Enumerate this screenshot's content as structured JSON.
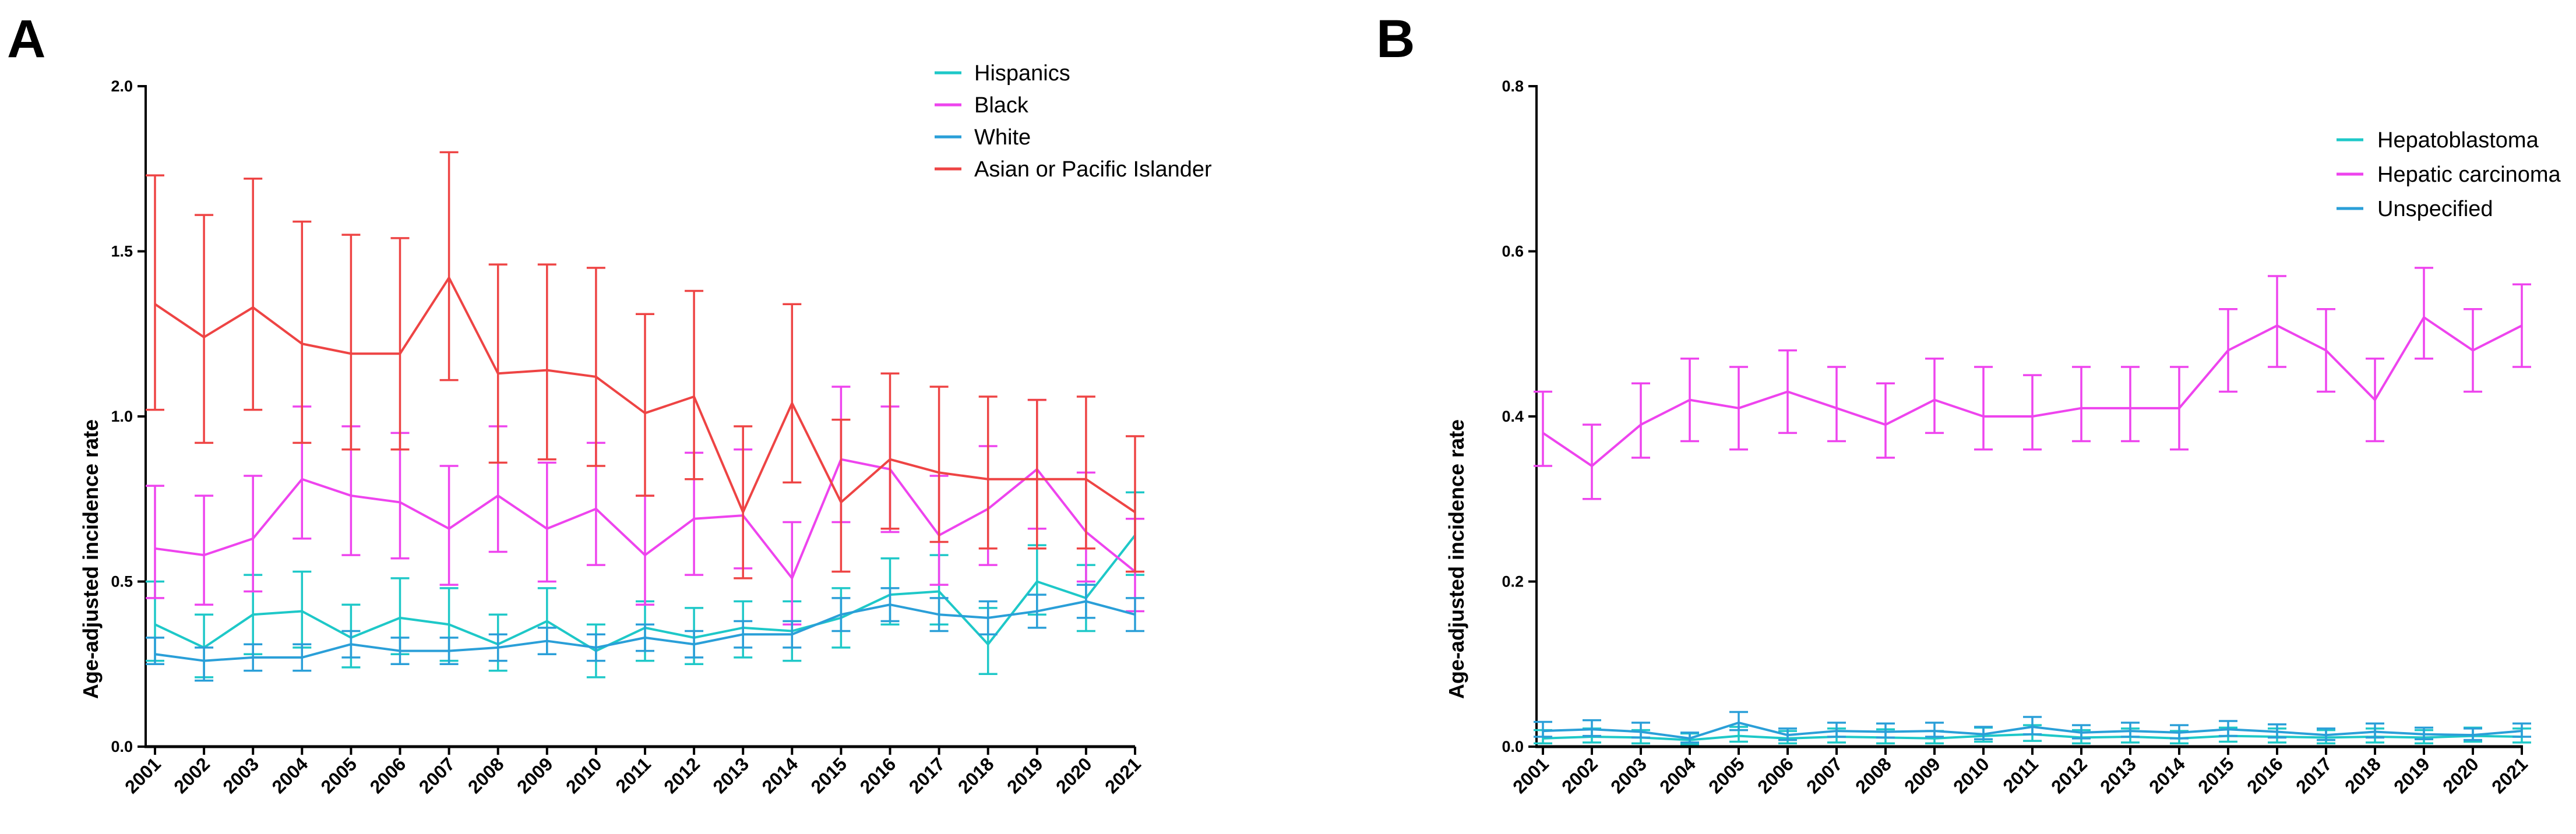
{
  "chart_data": [
    {
      "panel": "A",
      "type": "line",
      "title": "",
      "xlabel": "",
      "ylabel": "Age-adjusted incidence rate",
      "ylim": [
        0,
        2.0
      ],
      "yticks": [
        "0.0",
        "0.5",
        "1.0",
        "1.5",
        "2.0"
      ],
      "yticks_values": [
        0,
        0.5,
        1.0,
        1.5,
        2.0
      ],
      "error_bars": true,
      "grid": false,
      "legend_position": "top-right",
      "categories": [
        "2001",
        "2002",
        "2003",
        "2004",
        "2005",
        "2006",
        "2007",
        "2008",
        "2009",
        "2010",
        "2011",
        "2012",
        "2013",
        "2014",
        "2015",
        "2016",
        "2017",
        "2018",
        "2019",
        "2020",
        "2021"
      ],
      "series": [
        {
          "name": "Hispanics",
          "color": "#1ec8c8",
          "values": [
            0.37,
            0.3,
            0.4,
            0.41,
            0.33,
            0.39,
            0.37,
            0.31,
            0.38,
            0.29,
            0.36,
            0.33,
            0.36,
            0.35,
            0.39,
            0.46,
            0.47,
            0.31,
            0.5,
            0.45,
            0.64
          ],
          "lower": [
            0.26,
            0.21,
            0.28,
            0.3,
            0.24,
            0.28,
            0.26,
            0.23,
            0.28,
            0.21,
            0.26,
            0.25,
            0.27,
            0.26,
            0.3,
            0.37,
            0.37,
            0.22,
            0.4,
            0.35,
            0.52
          ],
          "upper": [
            0.5,
            0.4,
            0.52,
            0.53,
            0.43,
            0.51,
            0.48,
            0.4,
            0.48,
            0.37,
            0.44,
            0.42,
            0.44,
            0.44,
            0.48,
            0.57,
            0.58,
            0.42,
            0.61,
            0.55,
            0.77
          ]
        },
        {
          "name": "Black",
          "color": "#ee44ee",
          "values": [
            0.6,
            0.58,
            0.63,
            0.81,
            0.76,
            0.74,
            0.66,
            0.76,
            0.66,
            0.72,
            0.58,
            0.69,
            0.7,
            0.51,
            0.87,
            0.84,
            0.64,
            0.72,
            0.84,
            0.65,
            0.53
          ],
          "lower": [
            0.45,
            0.43,
            0.47,
            0.63,
            0.58,
            0.57,
            0.49,
            0.59,
            0.5,
            0.55,
            0.43,
            0.52,
            0.54,
            0.37,
            0.68,
            0.65,
            0.49,
            0.55,
            0.66,
            0.5,
            0.41
          ],
          "upper": [
            0.79,
            0.76,
            0.82,
            1.03,
            0.97,
            0.95,
            0.85,
            0.97,
            0.86,
            0.92,
            0.76,
            0.89,
            0.9,
            0.68,
            1.09,
            1.03,
            0.82,
            0.91,
            1.05,
            0.83,
            0.69
          ]
        },
        {
          "name": "White",
          "color": "#2a9fd8",
          "values": [
            0.28,
            0.26,
            0.27,
            0.27,
            0.31,
            0.29,
            0.29,
            0.3,
            0.32,
            0.3,
            0.33,
            0.31,
            0.34,
            0.34,
            0.4,
            0.43,
            0.4,
            0.39,
            0.41,
            0.44,
            0.4
          ],
          "lower": [
            0.25,
            0.2,
            0.23,
            0.23,
            0.27,
            0.25,
            0.25,
            0.26,
            0.28,
            0.26,
            0.29,
            0.27,
            0.3,
            0.3,
            0.35,
            0.38,
            0.35,
            0.34,
            0.36,
            0.39,
            0.35
          ],
          "upper": [
            0.33,
            0.3,
            0.31,
            0.31,
            0.35,
            0.33,
            0.33,
            0.34,
            0.36,
            0.34,
            0.37,
            0.35,
            0.38,
            0.38,
            0.45,
            0.48,
            0.45,
            0.44,
            0.46,
            0.49,
            0.45
          ]
        },
        {
          "name": "Asian or Pacific Islander",
          "color": "#ee4444",
          "values": [
            1.34,
            1.24,
            1.33,
            1.22,
            1.19,
            1.19,
            1.42,
            1.13,
            1.14,
            1.12,
            1.01,
            1.06,
            0.71,
            1.04,
            0.74,
            0.87,
            0.83,
            0.81,
            0.81,
            0.81,
            0.71
          ],
          "lower": [
            1.02,
            0.92,
            1.02,
            0.92,
            0.9,
            0.9,
            1.11,
            0.86,
            0.87,
            0.85,
            0.76,
            0.81,
            0.51,
            0.8,
            0.53,
            0.66,
            0.62,
            0.6,
            0.6,
            0.6,
            0.53
          ],
          "upper": [
            1.73,
            1.61,
            1.72,
            1.59,
            1.55,
            1.54,
            1.8,
            1.46,
            1.46,
            1.45,
            1.31,
            1.38,
            0.97,
            1.34,
            0.99,
            1.13,
            1.09,
            1.06,
            1.05,
            1.06,
            0.94
          ]
        }
      ]
    },
    {
      "panel": "B",
      "type": "line",
      "title": "",
      "xlabel": "",
      "ylabel": "Age-adjusted incidence rate",
      "ylim": [
        0,
        0.8
      ],
      "yticks": [
        "0.0",
        "0.2",
        "0.4",
        "0.6",
        "0.8"
      ],
      "yticks_values": [
        0,
        0.2,
        0.4,
        0.6,
        0.8
      ],
      "error_bars": true,
      "grid": false,
      "legend_position": "top-right",
      "categories": [
        "2001",
        "2002",
        "2003",
        "2004",
        "2005",
        "2006",
        "2007",
        "2008",
        "2009",
        "2010",
        "2011",
        "2012",
        "2013",
        "2014",
        "2015",
        "2016",
        "2017",
        "2018",
        "2019",
        "2020",
        "2021"
      ],
      "series": [
        {
          "name": "Hepatoblastoma",
          "color": "#1ec8c8",
          "values": [
            0.01,
            0.012,
            0.011,
            0.008,
            0.013,
            0.01,
            0.012,
            0.011,
            0.01,
            0.013,
            0.015,
            0.011,
            0.012,
            0.01,
            0.013,
            0.012,
            0.011,
            0.012,
            0.011,
            0.013,
            0.012
          ],
          "lower": [
            0.004,
            0.005,
            0.004,
            0.003,
            0.006,
            0.004,
            0.005,
            0.004,
            0.004,
            0.006,
            0.007,
            0.004,
            0.005,
            0.004,
            0.006,
            0.005,
            0.004,
            0.005,
            0.004,
            0.006,
            0.005
          ],
          "upper": [
            0.02,
            0.022,
            0.02,
            0.016,
            0.024,
            0.019,
            0.022,
            0.021,
            0.019,
            0.023,
            0.026,
            0.02,
            0.022,
            0.019,
            0.023,
            0.022,
            0.02,
            0.022,
            0.02,
            0.023,
            0.022
          ]
        },
        {
          "name": "Hepatic carcinoma",
          "color": "#ee44ee",
          "values": [
            0.38,
            0.34,
            0.39,
            0.42,
            0.41,
            0.43,
            0.41,
            0.39,
            0.42,
            0.4,
            0.4,
            0.41,
            0.41,
            0.41,
            0.48,
            0.51,
            0.48,
            0.42,
            0.52,
            0.48,
            0.51
          ],
          "lower": [
            0.34,
            0.3,
            0.35,
            0.37,
            0.36,
            0.38,
            0.37,
            0.35,
            0.38,
            0.36,
            0.36,
            0.37,
            0.37,
            0.36,
            0.43,
            0.46,
            0.43,
            0.37,
            0.47,
            0.43,
            0.46
          ],
          "upper": [
            0.43,
            0.39,
            0.44,
            0.47,
            0.46,
            0.48,
            0.46,
            0.44,
            0.47,
            0.46,
            0.45,
            0.46,
            0.46,
            0.46,
            0.53,
            0.57,
            0.53,
            0.47,
            0.58,
            0.53,
            0.56
          ]
        },
        {
          "name": "Unspecified",
          "color": "#2a9fd8",
          "values": [
            0.019,
            0.021,
            0.018,
            0.01,
            0.029,
            0.014,
            0.019,
            0.018,
            0.019,
            0.015,
            0.024,
            0.017,
            0.019,
            0.017,
            0.021,
            0.018,
            0.014,
            0.018,
            0.015,
            0.014,
            0.019
          ],
          "lower": [
            0.012,
            0.013,
            0.011,
            0.005,
            0.02,
            0.008,
            0.012,
            0.011,
            0.012,
            0.009,
            0.015,
            0.01,
            0.012,
            0.01,
            0.013,
            0.011,
            0.008,
            0.011,
            0.009,
            0.008,
            0.012
          ],
          "upper": [
            0.03,
            0.032,
            0.029,
            0.017,
            0.042,
            0.022,
            0.029,
            0.028,
            0.029,
            0.024,
            0.036,
            0.026,
            0.029,
            0.026,
            0.031,
            0.027,
            0.022,
            0.028,
            0.023,
            0.022,
            0.028
          ]
        }
      ]
    }
  ]
}
